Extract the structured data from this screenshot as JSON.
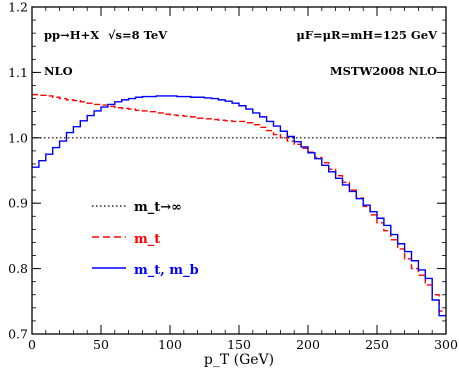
{
  "chart_data": {
    "type": "line",
    "title": "",
    "xlabel": "p_T (GeV)",
    "ylabel": "",
    "xlim": [
      0,
      300
    ],
    "ylim": [
      0.7,
      1.2
    ],
    "x_ticks": [
      0,
      50,
      100,
      150,
      200,
      250,
      300
    ],
    "x_tick_labels": [
      "0",
      "50",
      "100",
      "150",
      "200",
      "250",
      "300"
    ],
    "y_ticks": [
      0.7,
      0.8,
      0.9,
      1.0,
      1.1,
      1.2
    ],
    "y_tick_labels": [
      "0.7",
      "0.8",
      "0.9",
      "1.0",
      "1.1",
      "1.2"
    ],
    "x_minor_step": 10,
    "y_minor_step": 0.02,
    "grid": false,
    "legend_position": "lower-left",
    "annotations": {
      "process": "pp→H+X",
      "energy": "√s=8 TeV",
      "scales": "μF=μR=mH=125 GeV",
      "order": "NLO",
      "pdf": "MSTW2008 NLO"
    },
    "series": [
      {
        "name": "m_t→∞",
        "style": "dotted",
        "color": "#000000",
        "x": [
          0,
          300
        ],
        "y": [
          1.0,
          1.0
        ]
      },
      {
        "name": "m_t",
        "style": "dashed-step",
        "color": "#ff0000",
        "bin_edges": [
          0,
          5,
          10,
          15,
          20,
          25,
          30,
          35,
          40,
          45,
          50,
          55,
          60,
          65,
          70,
          75,
          80,
          85,
          90,
          95,
          100,
          105,
          110,
          115,
          120,
          125,
          130,
          135,
          140,
          145,
          150,
          155,
          160,
          165,
          170,
          175,
          180,
          185,
          190,
          195,
          200,
          205,
          210,
          215,
          220,
          225,
          230,
          235,
          240,
          245,
          250,
          255,
          260,
          265,
          270,
          275,
          280,
          285,
          290,
          295,
          300
        ],
        "values": [
          1.066,
          1.065,
          1.064,
          1.062,
          1.06,
          1.058,
          1.057,
          1.055,
          1.053,
          1.051,
          1.05,
          1.048,
          1.046,
          1.045,
          1.044,
          1.042,
          1.041,
          1.04,
          1.038,
          1.036,
          1.035,
          1.034,
          1.033,
          1.032,
          1.03,
          1.029,
          1.028,
          1.027,
          1.026,
          1.025,
          1.025,
          1.023,
          1.02,
          1.016,
          1.011,
          1.005,
          1.0,
          0.995,
          0.99,
          0.984,
          0.978,
          0.97,
          0.962,
          0.952,
          0.942,
          0.932,
          0.92,
          0.908,
          0.895,
          0.882,
          0.87,
          0.858,
          0.844,
          0.83,
          0.815,
          0.8,
          0.79,
          0.775,
          0.76,
          0.735
        ]
      },
      {
        "name": "m_t, m_b",
        "style": "solid-step",
        "color": "#0000ff",
        "bin_edges": [
          0,
          5,
          10,
          15,
          20,
          25,
          30,
          35,
          40,
          45,
          50,
          55,
          60,
          65,
          70,
          75,
          80,
          85,
          90,
          95,
          100,
          105,
          110,
          115,
          120,
          125,
          130,
          135,
          140,
          145,
          150,
          155,
          160,
          165,
          170,
          175,
          180,
          185,
          190,
          195,
          200,
          205,
          210,
          215,
          220,
          225,
          230,
          235,
          240,
          245,
          250,
          255,
          260,
          265,
          270,
          275,
          280,
          285,
          290,
          295,
          300
        ],
        "values": [
          0.955,
          0.965,
          0.975,
          0.985,
          0.995,
          1.008,
          1.017,
          1.026,
          1.034,
          1.041,
          1.047,
          1.051,
          1.055,
          1.058,
          1.06,
          1.062,
          1.063,
          1.063,
          1.064,
          1.064,
          1.064,
          1.063,
          1.063,
          1.062,
          1.062,
          1.061,
          1.06,
          1.058,
          1.056,
          1.053,
          1.049,
          1.044,
          1.038,
          1.032,
          1.025,
          1.018,
          1.01,
          1.002,
          0.994,
          0.986,
          0.977,
          0.968,
          0.958,
          0.948,
          0.938,
          0.928,
          0.918,
          0.907,
          0.897,
          0.887,
          0.877,
          0.866,
          0.852,
          0.838,
          0.826,
          0.812,
          0.798,
          0.785,
          0.752,
          0.728
        ]
      }
    ]
  }
}
